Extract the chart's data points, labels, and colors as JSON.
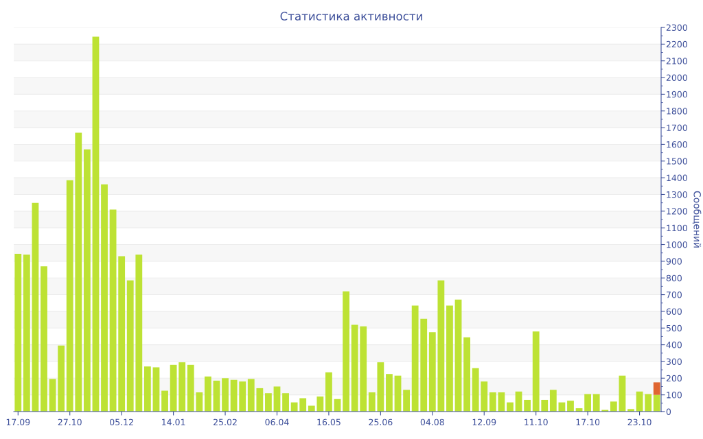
{
  "chart_data": {
    "type": "bar",
    "title": "Статистика активности",
    "ylabel": "Сообщений",
    "stacked": true,
    "categories": [
      "17.09",
      null,
      null,
      null,
      null,
      null,
      "27.10",
      null,
      null,
      null,
      null,
      null,
      "05.12",
      null,
      null,
      null,
      null,
      null,
      "14.01",
      null,
      null,
      null,
      null,
      null,
      "25.02",
      null,
      null,
      null,
      null,
      null,
      "06.04",
      null,
      null,
      null,
      null,
      null,
      "16.05",
      null,
      null,
      null,
      null,
      null,
      "25.06",
      null,
      null,
      null,
      null,
      null,
      "04.08",
      null,
      null,
      null,
      null,
      null,
      "12.09",
      null,
      null,
      null,
      null,
      null,
      "11.10",
      null,
      null,
      null,
      null,
      null,
      "17.10",
      null,
      null,
      null,
      null,
      null,
      "23.10",
      null,
      null
    ],
    "series": [
      {
        "color": "#bde234",
        "values": [
          945,
          940,
          1250,
          870,
          195,
          395,
          1385,
          1670,
          1570,
          2245,
          1360,
          1210,
          930,
          785,
          940,
          270,
          265,
          125,
          280,
          295,
          280,
          115,
          210,
          185,
          200,
          190,
          180,
          195,
          140,
          110,
          150,
          110,
          55,
          80,
          35,
          90,
          235,
          75,
          720,
          520,
          510,
          115,
          295,
          225,
          215,
          130,
          635,
          555,
          475,
          785,
          635,
          670,
          445,
          260,
          180,
          115,
          115,
          55,
          120,
          70,
          480,
          70,
          130,
          55,
          65,
          20,
          105,
          105,
          10,
          60,
          215,
          15,
          120,
          105,
          100
        ]
      },
      {
        "color": "#e06530",
        "values": [
          null,
          null,
          null,
          null,
          null,
          null,
          null,
          null,
          null,
          null,
          null,
          null,
          null,
          null,
          null,
          null,
          null,
          null,
          null,
          null,
          null,
          null,
          null,
          null,
          null,
          null,
          null,
          null,
          null,
          null,
          null,
          null,
          null,
          null,
          null,
          null,
          null,
          null,
          null,
          null,
          null,
          null,
          null,
          null,
          null,
          null,
          null,
          null,
          null,
          null,
          null,
          null,
          null,
          null,
          null,
          null,
          null,
          null,
          null,
          null,
          null,
          null,
          null,
          null,
          null,
          null,
          null,
          null,
          null,
          null,
          null,
          null,
          null,
          null,
          75
        ]
      }
    ],
    "ylim": [
      0,
      2300
    ],
    "yticks": [
      0,
      100,
      200,
      300,
      400,
      500,
      600,
      700,
      800,
      900,
      1000,
      1100,
      1200,
      1300,
      1400,
      1500,
      1600,
      1700,
      1800,
      1900,
      2000,
      2100,
      2200,
      2300
    ],
    "grid": "y"
  }
}
